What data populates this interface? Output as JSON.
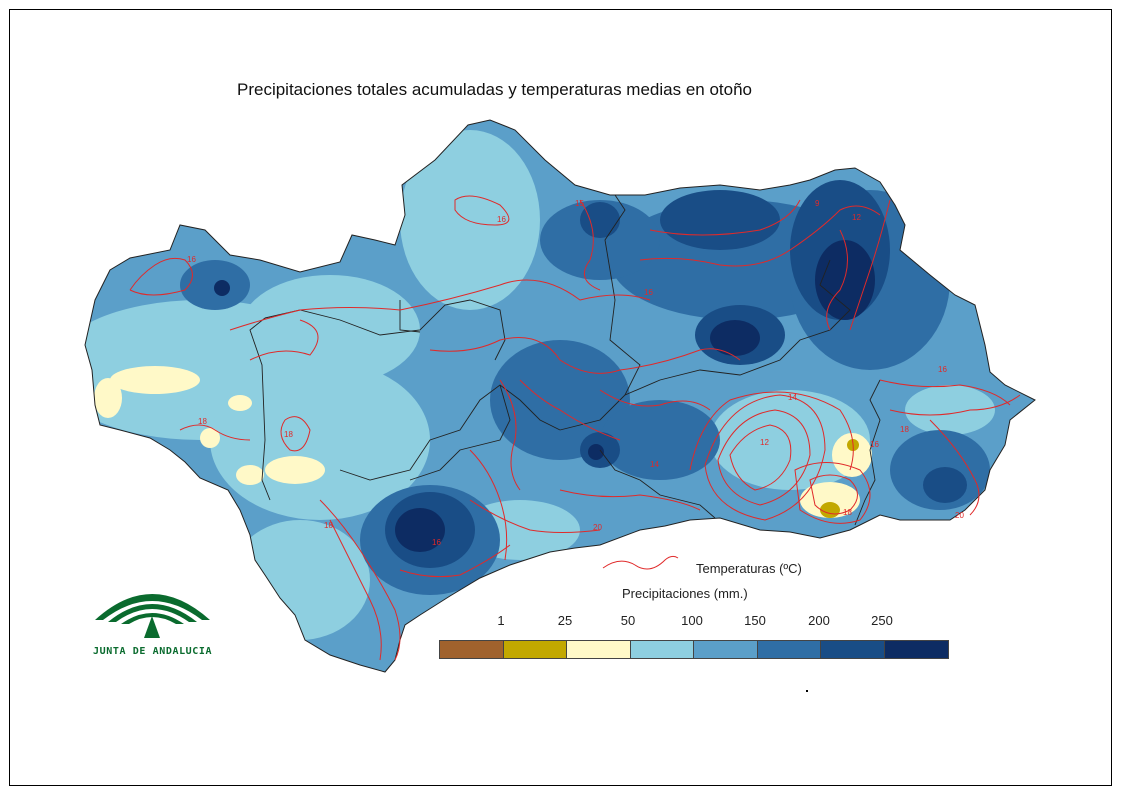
{
  "title": "Precipitaciones totales acumuladas y temperaturas medias en otoño",
  "legend": {
    "temperature_label": "Temperaturas (ºC)",
    "precipitation_title": "Precipitaciones (mm.)",
    "ticks": [
      "1",
      "25",
      "50",
      "100",
      "150",
      "200",
      "250"
    ],
    "colors": [
      "#a0622d",
      "#c2a800",
      "#fff9c8",
      "#8ecfe0",
      "#5b9fc9",
      "#2f6ea5",
      "#194d86",
      "#0d2c63"
    ],
    "temperature_line_color": "#e02a2a"
  },
  "logo": {
    "text": "JUNTA DE ANDALUCIA",
    "color": "#0a6b2e"
  }
}
